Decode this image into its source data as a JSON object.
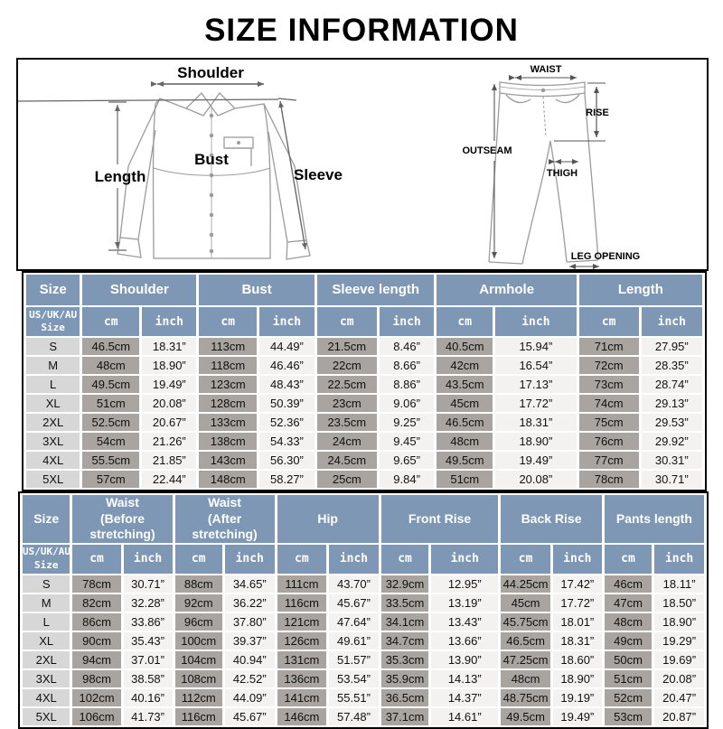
{
  "title": "SIZE INFORMATION",
  "colors": {
    "header_blue": "#7E97B4",
    "cm_cell_gray": "#A9A49F",
    "inch_cell_white": "#F4F2F0",
    "size_cell_gray": "#D7D7D7",
    "table_border": "#000000"
  },
  "diagram": {
    "shirt": {
      "shoulder": "Shoulder",
      "length": "Length",
      "bust": "Bust",
      "sleeve": "Sleeve"
    },
    "pants": {
      "waist": "WAIST",
      "rise": "RISE",
      "outseam": "OUTSEAM",
      "thigh": "THIGH",
      "leg_opening": "LEG OPENING"
    }
  },
  "tables": [
    {
      "name": "tops-size-table",
      "columns": [
        {
          "label": "Size",
          "span": 1
        },
        {
          "label": "Shoulder",
          "span": 2
        },
        {
          "label": "Bust",
          "span": 2
        },
        {
          "label": "Sleeve length",
          "span": 2
        },
        {
          "label": "Armhole",
          "span": 2
        },
        {
          "label": "Length",
          "span": 2
        }
      ],
      "size_subheader": "US/UK/AU\nSize",
      "unit_labels": [
        "cm",
        "inch"
      ],
      "rows": [
        {
          "size": "S",
          "values": [
            "46.5cm",
            "18.31”",
            "113cm",
            "44.49”",
            "21.5cm",
            "8.46”",
            "40.5cm",
            "15.94”",
            "71cm",
            "27.95”"
          ]
        },
        {
          "size": "M",
          "values": [
            "48cm",
            "18.90”",
            "118cm",
            "46.46”",
            "22cm",
            "8.66”",
            "42cm",
            "16.54”",
            "72cm",
            "28.35”"
          ]
        },
        {
          "size": "L",
          "values": [
            "49.5cm",
            "19.49”",
            "123cm",
            "48.43”",
            "22.5cm",
            "8.86”",
            "43.5cm",
            "17.13”",
            "73cm",
            "28.74”"
          ]
        },
        {
          "size": "XL",
          "values": [
            "51cm",
            "20.08”",
            "128cm",
            "50.39”",
            "23cm",
            "9.06”",
            "45cm",
            "17.72”",
            "74cm",
            "29.13”"
          ]
        },
        {
          "size": "2XL",
          "values": [
            "52.5cm",
            "20.67”",
            "133cm",
            "52.36”",
            "23.5cm",
            "9.25”",
            "46.5cm",
            "18.31”",
            "75cm",
            "29.53”"
          ]
        },
        {
          "size": "3XL",
          "values": [
            "54cm",
            "21.26”",
            "138cm",
            "54.33”",
            "24cm",
            "9.45”",
            "48cm",
            "18.90”",
            "76cm",
            "29.92”"
          ]
        },
        {
          "size": "4XL",
          "values": [
            "55.5cm",
            "21.85”",
            "143cm",
            "56.30”",
            "24.5cm",
            "9.65”",
            "49.5cm",
            "19.49”",
            "77cm",
            "30.31”"
          ]
        },
        {
          "size": "5XL",
          "values": [
            "57cm",
            "22.44”",
            "148cm",
            "58.27”",
            "25cm",
            "9.84”",
            "51cm",
            "20.08”",
            "78cm",
            "30.71”"
          ]
        }
      ]
    },
    {
      "name": "bottoms-size-table",
      "columns": [
        {
          "label": "Size",
          "span": 1
        },
        {
          "label": "Waist\n(Before stretching)",
          "span": 2
        },
        {
          "label": "Waist\n(After stretching)",
          "span": 2
        },
        {
          "label": "Hip",
          "span": 2
        },
        {
          "label": "Front Rise",
          "span": 2
        },
        {
          "label": "Back Rise",
          "span": 2
        },
        {
          "label": "Pants length",
          "span": 2
        }
      ],
      "size_subheader": "US/UK/AU\nSize",
      "unit_labels": [
        "cm",
        "inch"
      ],
      "rows": [
        {
          "size": "S",
          "values": [
            "78cm",
            "30.71”",
            "88cm",
            "34.65”",
            "111cm",
            "43.70”",
            "32.9cm",
            "12.95”",
            "44.25cm",
            "17.42”",
            "46cm",
            "18.11”"
          ]
        },
        {
          "size": "M",
          "values": [
            "82cm",
            "32.28”",
            "92cm",
            "36.22”",
            "116cm",
            "45.67”",
            "33.5cm",
            "13.19”",
            "45cm",
            "17.72”",
            "47cm",
            "18.50”"
          ]
        },
        {
          "size": "L",
          "values": [
            "86cm",
            "33.86”",
            "96cm",
            "37.80”",
            "121cm",
            "47.64”",
            "34.1cm",
            "13.43”",
            "45.75cm",
            "18.01”",
            "48cm",
            "18.90”"
          ]
        },
        {
          "size": "XL",
          "values": [
            "90cm",
            "35.43”",
            "100cm",
            "39.37”",
            "126cm",
            "49.61”",
            "34.7cm",
            "13.66”",
            "46.5cm",
            "18.31”",
            "49cm",
            "19.29”"
          ]
        },
        {
          "size": "2XL",
          "values": [
            "94cm",
            "37.01”",
            "104cm",
            "40.94”",
            "131cm",
            "51.57”",
            "35.3cm",
            "13.90”",
            "47.25cm",
            "18.60”",
            "50cm",
            "19.69”"
          ]
        },
        {
          "size": "3XL",
          "values": [
            "98cm",
            "38.58”",
            "108cm",
            "42.52”",
            "136cm",
            "53.54”",
            "35.9cm",
            "14.13”",
            "48cm",
            "18.90”",
            "51cm",
            "20.08”"
          ]
        },
        {
          "size": "4XL",
          "values": [
            "102cm",
            "40.16”",
            "112cm",
            "44.09”",
            "141cm",
            "55.51”",
            "36.5cm",
            "14.37”",
            "48.75cm",
            "19.19”",
            "52cm",
            "20.47”"
          ]
        },
        {
          "size": "5XL",
          "values": [
            "106cm",
            "41.73”",
            "116cm",
            "45.67”",
            "146cm",
            "57.48”",
            "37.1cm",
            "14.61”",
            "49.5cm",
            "19.49”",
            "53cm",
            "20.87”"
          ]
        }
      ]
    }
  ]
}
